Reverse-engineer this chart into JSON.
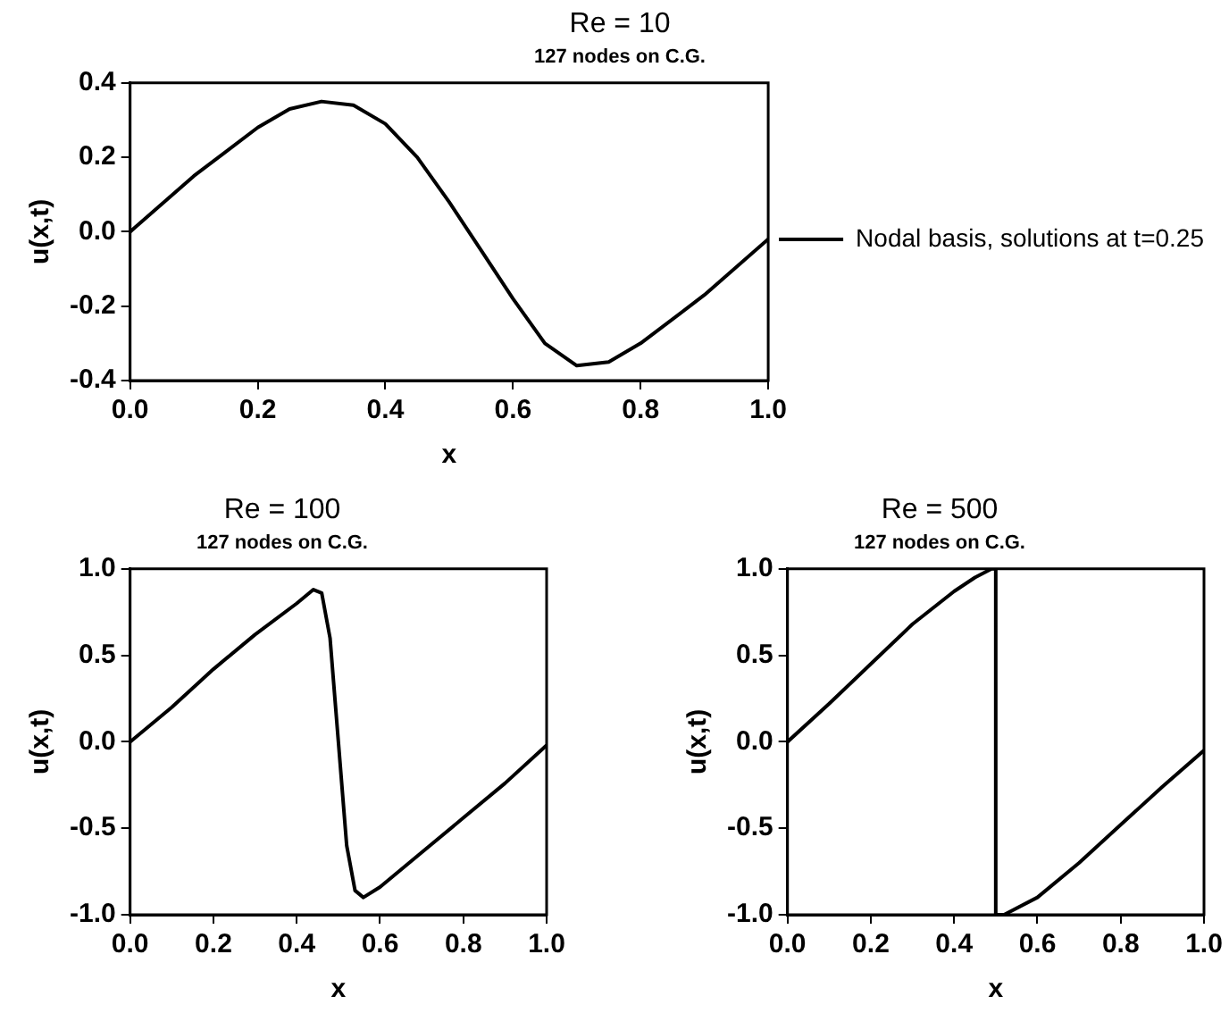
{
  "chart_data": [
    {
      "type": "line",
      "title": "Re = 10",
      "subtitle": "127 nodes on C.G.",
      "xlabel": "x",
      "ylabel": "u(x,t)",
      "legend": "right",
      "marker": "none",
      "line_style": "solid",
      "series": [
        {
          "name": "Nodal basis, solutions at t=0.25",
          "color": "#000000",
          "x": [
            0,
            0.1,
            0.2,
            0.25,
            0.3,
            0.35,
            0.4,
            0.45,
            0.5,
            0.55,
            0.6,
            0.65,
            0.7,
            0.75,
            0.8,
            0.9,
            1.0
          ],
          "values": [
            0,
            0.15,
            0.28,
            0.33,
            0.35,
            0.34,
            0.29,
            0.2,
            0.08,
            -0.05,
            -0.18,
            -0.3,
            -0.36,
            -0.35,
            -0.3,
            -0.17,
            -0.02
          ]
        }
      ],
      "xlim": [
        0,
        1
      ],
      "ylim": [
        -0.4,
        0.4
      ],
      "xticks": [
        {
          "value": 0,
          "label": "0.0"
        },
        {
          "value": 0.2,
          "label": "0.2"
        },
        {
          "value": 0.4,
          "label": "0.4"
        },
        {
          "value": 0.6,
          "label": "0.6"
        },
        {
          "value": 0.8,
          "label": "0.8"
        },
        {
          "value": 1,
          "label": "1.0"
        }
      ],
      "yticks": [
        {
          "value": -0.4,
          "label": "-0.4"
        },
        {
          "value": -0.2,
          "label": "-0.2"
        },
        {
          "value": 0,
          "label": "0.0"
        },
        {
          "value": 0.2,
          "label": "0.2"
        },
        {
          "value": 0.4,
          "label": "0.4"
        }
      ]
    },
    {
      "type": "line",
      "title": "Re = 100",
      "subtitle": "127 nodes on C.G.",
      "xlabel": "x",
      "ylabel": "u(x,t)",
      "marker": "none",
      "line_style": "solid",
      "series": [
        {
          "color": "#000000",
          "x": [
            0,
            0.1,
            0.2,
            0.3,
            0.4,
            0.44,
            0.46,
            0.48,
            0.5,
            0.52,
            0.54,
            0.56,
            0.6,
            0.7,
            0.8,
            0.9,
            1.0
          ],
          "values": [
            0,
            0.2,
            0.42,
            0.62,
            0.8,
            0.88,
            0.86,
            0.6,
            0,
            -0.6,
            -0.86,
            -0.9,
            -0.84,
            -0.64,
            -0.44,
            -0.24,
            -0.02
          ]
        }
      ],
      "xlim": [
        0,
        1
      ],
      "ylim": [
        -1,
        1
      ],
      "xticks": [
        {
          "value": 0,
          "label": "0.0"
        },
        {
          "value": 0.2,
          "label": "0.2"
        },
        {
          "value": 0.4,
          "label": "0.4"
        },
        {
          "value": 0.6,
          "label": "0.6"
        },
        {
          "value": 0.8,
          "label": "0.8"
        },
        {
          "value": 1,
          "label": "1.0"
        }
      ],
      "yticks": [
        {
          "value": -1,
          "label": "-1.0"
        },
        {
          "value": -0.5,
          "label": "-0.5"
        },
        {
          "value": 0,
          "label": "0.0"
        },
        {
          "value": 0.5,
          "label": "0.5"
        },
        {
          "value": 1,
          "label": "1.0"
        }
      ]
    },
    {
      "type": "line",
      "title": "Re = 500",
      "subtitle": "127 nodes on C.G.",
      "xlabel": "x",
      "ylabel": "u(x,t)",
      "marker": "none",
      "line_style": "solid",
      "series": [
        {
          "color": "#000000",
          "x": [
            0,
            0.1,
            0.2,
            0.3,
            0.4,
            0.45,
            0.49,
            0.5,
            0.5,
            0.52,
            0.6,
            0.7,
            0.8,
            0.9,
            1.0
          ],
          "values": [
            0,
            0.22,
            0.45,
            0.68,
            0.87,
            0.95,
            1.0,
            1.0,
            -1.0,
            -1.0,
            -0.9,
            -0.7,
            -0.48,
            -0.26,
            -0.05
          ]
        }
      ],
      "xlim": [
        0,
        1
      ],
      "ylim": [
        -1,
        1
      ],
      "xticks": [
        {
          "value": 0,
          "label": "0.0"
        },
        {
          "value": 0.2,
          "label": "0.2"
        },
        {
          "value": 0.4,
          "label": "0.4"
        },
        {
          "value": 0.6,
          "label": "0.6"
        },
        {
          "value": 0.8,
          "label": "0.8"
        },
        {
          "value": 1,
          "label": "1.0"
        }
      ],
      "yticks": [
        {
          "value": -1,
          "label": "-1.0"
        },
        {
          "value": -0.5,
          "label": "-0.5"
        },
        {
          "value": 0,
          "label": "0.0"
        },
        {
          "value": 0.5,
          "label": "0.5"
        },
        {
          "value": 1,
          "label": "1.0"
        }
      ]
    }
  ]
}
